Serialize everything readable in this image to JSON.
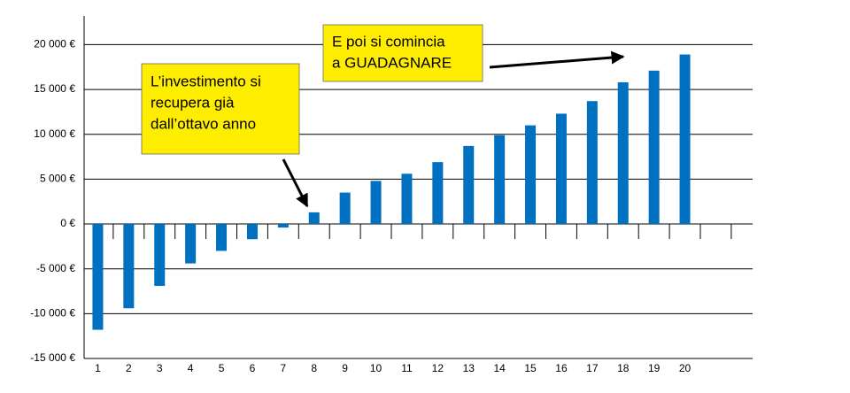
{
  "chart_data": {
    "type": "bar",
    "categories": [
      "1",
      "2",
      "3",
      "4",
      "5",
      "6",
      "7",
      "8",
      "9",
      "10",
      "11",
      "12",
      "13",
      "14",
      "15",
      "16",
      "17",
      "18",
      "19",
      "20",
      null,
      null
    ],
    "values": [
      -11800,
      -9400,
      -6900,
      -4400,
      -3000,
      -1700,
      -400,
      1300,
      3500,
      4800,
      5600,
      6900,
      8700,
      9900,
      11000,
      12300,
      13700,
      15800,
      17100,
      18900,
      null,
      null
    ],
    "color": "#0070c0",
    "ylim": [
      -15000,
      23200
    ],
    "yticks": [
      {
        "value": -15000,
        "label": "-15 000 €"
      },
      {
        "value": -10000,
        "label": "-10 000 €"
      },
      {
        "value": -5000,
        "label": "-5 000 €"
      },
      {
        "value": 0,
        "label": "0 €"
      },
      {
        "value": 5000,
        "label": "5 000 €"
      },
      {
        "value": 10000,
        "label": "10 000 €"
      },
      {
        "value": 15000,
        "label": "15 000 €"
      },
      {
        "value": 20000,
        "label": "20 000 €"
      }
    ],
    "grid": true,
    "annotations": [
      {
        "lines": [
          "L’investimento si",
          "recupera già",
          "dall’ottavo anno"
        ]
      },
      {
        "lines": [
          "E poi si comincia",
          "a GUADAGNARE"
        ]
      }
    ]
  }
}
